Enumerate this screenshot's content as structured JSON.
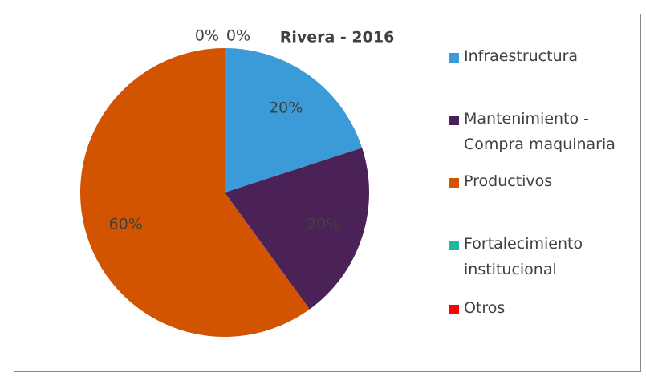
{
  "chart_data": {
    "type": "pie",
    "title": "Rivera - 2016",
    "categories": [
      "Infraestructura",
      "Mantenimiento - Compra maquinaria",
      "Productivos",
      "Fortalecimiento institucional",
      "Otros"
    ],
    "values": [
      20,
      20,
      60,
      0,
      0
    ],
    "value_labels": [
      "20%",
      "20%",
      "60%",
      "0%",
      "0%"
    ],
    "colors": [
      "#3b9bd9",
      "#4b2257",
      "#d35400",
      "#1abc9c",
      "#ff0000"
    ]
  }
}
